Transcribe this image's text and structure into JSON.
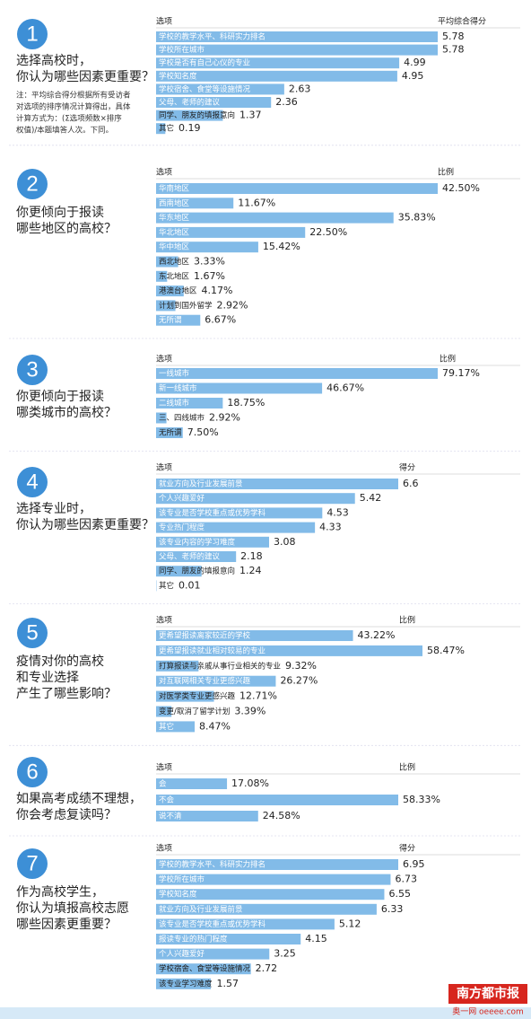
{
  "chart_data": [
    {
      "type": "bar",
      "number": "1",
      "question": [
        "选择高校时，",
        "你认为哪些因素更重要？"
      ],
      "note": [
        "注：平均综合得分根据所有受访者",
        "对选项的排序情况计算得出，具体",
        "计算方式为：(Σ选项频数×排序",
        "权值)/本题填答人次。下同。"
      ],
      "category_header": "选项",
      "value_header": "平均综合得分",
      "color": "#82bbe8",
      "categories": [
        "学校的教学水平、科研实力排名",
        "学校所在城市",
        "学校是否有自己心仪的专业",
        "学校知名度",
        "学校宿舍、食堂等设施情况",
        "父母、老师的建议",
        "同学、朋友的填报意向",
        "其它"
      ],
      "values": [
        5.78,
        5.78,
        4.99,
        4.95,
        2.63,
        2.36,
        1.37,
        0.19
      ]
    },
    {
      "type": "bar",
      "number": "2",
      "question": [
        "你更倾向于报读",
        "哪些地区的高校？"
      ],
      "category_header": "选项",
      "value_header": "比例",
      "color": "#82bbe8",
      "categories": [
        "华南地区",
        "西南地区",
        "华东地区",
        "华北地区",
        "华中地区",
        "西北地区",
        "东北地区",
        "港澳台地区",
        "计划到国外留学",
        "无所谓"
      ],
      "values": [
        42.5,
        11.67,
        35.83,
        22.5,
        15.42,
        3.33,
        1.67,
        4.17,
        2.92,
        6.67
      ],
      "value_labels": [
        "42.50%",
        "11.67%",
        "35.83%",
        "22.50%",
        "15.42%",
        "3.33%",
        "1.67%",
        "4.17%",
        "2.92%",
        "6.67%"
      ]
    },
    {
      "type": "bar",
      "number": "3",
      "question": [
        "你更倾向于报读",
        "哪类城市的高校？"
      ],
      "category_header": "选项",
      "value_header": "比例",
      "color": "#82bbe8",
      "categories": [
        "一线城市",
        "新一线城市",
        "二线城市",
        "三、四线城市",
        "无所谓"
      ],
      "values": [
        79.17,
        46.67,
        18.75,
        2.92,
        7.5
      ],
      "value_labels": [
        "79.17%",
        "46.67%",
        "18.75%",
        "2.92%",
        "7.50%"
      ]
    },
    {
      "type": "bar",
      "number": "4",
      "question": [
        "选择专业时，",
        "你认为哪些因素更重要？"
      ],
      "category_header": "选项",
      "value_header": "得分",
      "color": "#82bbe8",
      "categories": [
        "就业方向及行业发展前景",
        "个人兴趣爱好",
        "该专业是否学校重点或优势学科",
        "专业热门程度",
        "该专业内容的学习难度",
        "父母、老师的建议",
        "同学、朋友的填报意向",
        "其它"
      ],
      "values": [
        6.6,
        5.42,
        4.53,
        4.33,
        3.08,
        2.18,
        1.24,
        0.01
      ]
    },
    {
      "type": "bar",
      "number": "5",
      "question": [
        "疫情对你的高校",
        "和专业选择",
        "产生了哪些影响？"
      ],
      "category_header": "选项",
      "value_header": "比例",
      "color": "#82bbe8",
      "categories": [
        "更希望报读离家较近的学校",
        "更希望报读就业相对较易的专业",
        "打算报读与亲戚从事行业相关的专业",
        "对互联网相关专业更感兴趣",
        "对医学类专业更感兴趣",
        "变更/取消了留学计划",
        "其它"
      ],
      "values": [
        43.22,
        58.47,
        9.32,
        26.27,
        12.71,
        3.39,
        8.47
      ],
      "value_labels": [
        "43.22%",
        "58.47%",
        "9.32%",
        "26.27%",
        "12.71%",
        "3.39%",
        "8.47%"
      ]
    },
    {
      "type": "bar",
      "number": "6",
      "question": [
        "如果高考成绩不理想，",
        "你会考虑复读吗？"
      ],
      "category_header": "选项",
      "value_header": "比例",
      "color": "#82bbe8",
      "categories": [
        "会",
        "不会",
        "说不清"
      ],
      "values": [
        17.08,
        58.33,
        24.58
      ],
      "value_labels": [
        "17.08%",
        "58.33%",
        "24.58%"
      ]
    },
    {
      "type": "bar",
      "number": "7",
      "question": [
        "作为高校学生，",
        "你认为填报高校志愿",
        "哪些因素更重要？"
      ],
      "category_header": "选项",
      "value_header": "得分",
      "color": "#82bbe8",
      "categories": [
        "学校的教学水平、科研实力排名",
        "学校所在城市",
        "学校知名度",
        "就业方向及行业发展前景",
        "该专业是否学校重点或优势学科",
        "报读专业的热门程度",
        "个人兴趣爱好",
        "学校宿舍、食堂等设施情况",
        "该专业学习难度"
      ],
      "values": [
        6.95,
        6.73,
        6.55,
        6.33,
        5.12,
        4.15,
        3.25,
        2.72,
        1.57
      ]
    }
  ],
  "footer": {
    "logo": "南方都市报",
    "site": "奥一网 oeeee.com"
  }
}
